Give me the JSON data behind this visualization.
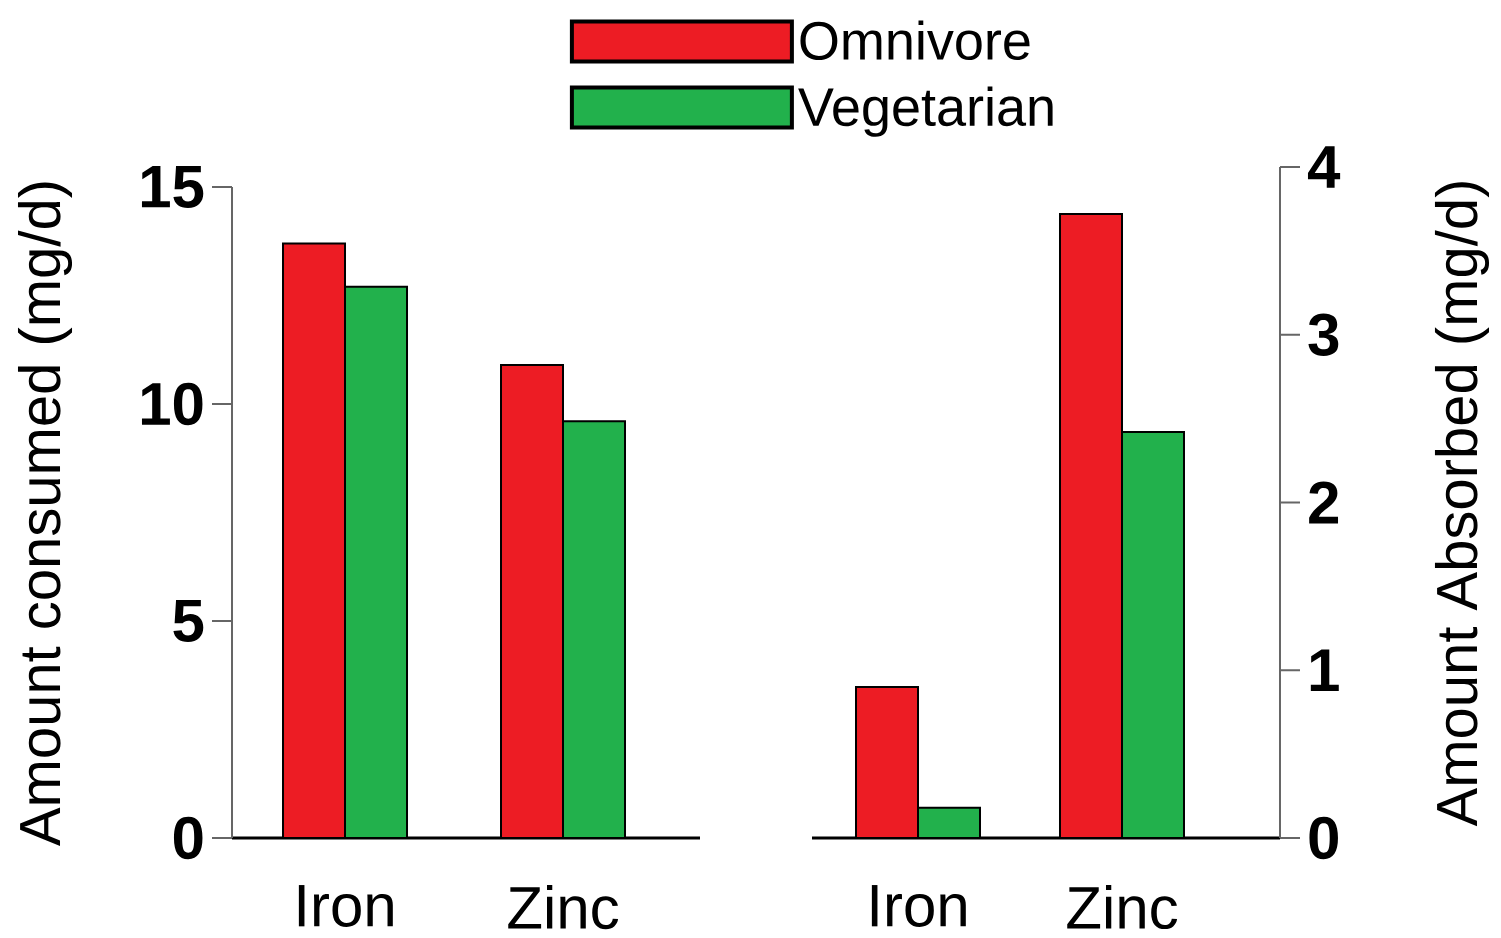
{
  "chart_data": [
    {
      "type": "bar",
      "categories": [
        "Iron",
        "Zinc"
      ],
      "ylabel": "Amount consumed (mg/d)",
      "ylim": [
        0,
        15
      ],
      "yticks": [
        0,
        5,
        10,
        15
      ],
      "legend": "top",
      "series": [
        {
          "name": "Omnivore",
          "color": "#ed1c24",
          "values": [
            13.7,
            10.9
          ]
        },
        {
          "name": "Vegetarian",
          "color": "#22b14c",
          "values": [
            12.7,
            9.6
          ]
        }
      ]
    },
    {
      "type": "bar",
      "categories": [
        "Iron",
        "Zinc"
      ],
      "ylabel": "Amount Absorbed (mg/d)",
      "ylim": [
        0,
        4
      ],
      "yticks": [
        0,
        1,
        2,
        3,
        4
      ],
      "series": [
        {
          "color": "#ed1c24",
          "values": [
            0.9,
            3.72
          ]
        },
        {
          "color": "#22b14c",
          "values": [
            0.18,
            2.42
          ]
        }
      ]
    }
  ]
}
